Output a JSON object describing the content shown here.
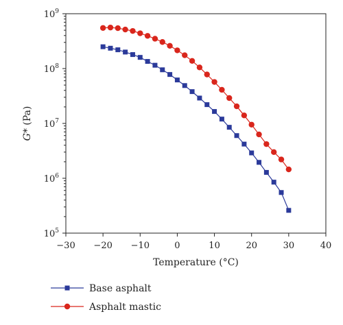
{
  "chart_data": {
    "type": "line",
    "xlabel": "Temperature (°C)",
    "ylabel": "G* (Pa)",
    "ylabel_italic_part": "G*",
    "ylabel_unit_part": " (Pa)",
    "y_scale": "log",
    "xlim": [
      -30,
      40
    ],
    "ylim": [
      100000,
      1000000000
    ],
    "x_ticks": [
      -30,
      -20,
      -10,
      0,
      10,
      20,
      30,
      40
    ],
    "y_ticks": [
      {
        "value": 100000,
        "base": "10",
        "exp": "5"
      },
      {
        "value": 1000000,
        "base": "10",
        "exp": "6"
      },
      {
        "value": 10000000,
        "base": "10",
        "exp": "7"
      },
      {
        "value": 100000000,
        "base": "10",
        "exp": "8"
      },
      {
        "value": 1000000000,
        "base": "10",
        "exp": "9"
      }
    ],
    "grid": false,
    "legend_position": "bottom",
    "series": [
      {
        "name": "Base asphalt",
        "marker": "square",
        "color": "#2b3a9a",
        "x": [
          -20,
          -18,
          -16,
          -14,
          -12,
          -10,
          -8,
          -6,
          -4,
          -2,
          0,
          2,
          4,
          6,
          8,
          10,
          12,
          14,
          16,
          18,
          20,
          22,
          24,
          26,
          28,
          30
        ],
        "y": [
          250000000,
          235000000,
          220000000,
          200000000,
          180000000,
          160000000,
          135000000,
          115000000,
          95000000,
          78000000,
          62000000,
          49000000,
          38000000,
          29000000,
          22000000,
          16500000,
          12000000,
          8500000,
          6000000,
          4200000,
          2900000,
          1950000,
          1280000,
          850000,
          550000,
          260000
        ]
      },
      {
        "name": "Asphalt mastic",
        "marker": "circle",
        "color": "#d9261c",
        "x": [
          -20,
          -18,
          -16,
          -14,
          -12,
          -10,
          -8,
          -6,
          -4,
          -2,
          0,
          2,
          4,
          6,
          8,
          10,
          12,
          14,
          16,
          18,
          20,
          22,
          24,
          26,
          28,
          30
        ],
        "y": [
          550000000,
          560000000,
          545000000,
          515000000,
          485000000,
          440000000,
          395000000,
          350000000,
          305000000,
          260000000,
          215000000,
          175000000,
          138000000,
          105000000,
          78000000,
          57000000,
          41000000,
          29000000,
          20500000,
          14000000,
          9500000,
          6300000,
          4200000,
          3000000,
          2200000,
          1450000
        ]
      }
    ]
  }
}
